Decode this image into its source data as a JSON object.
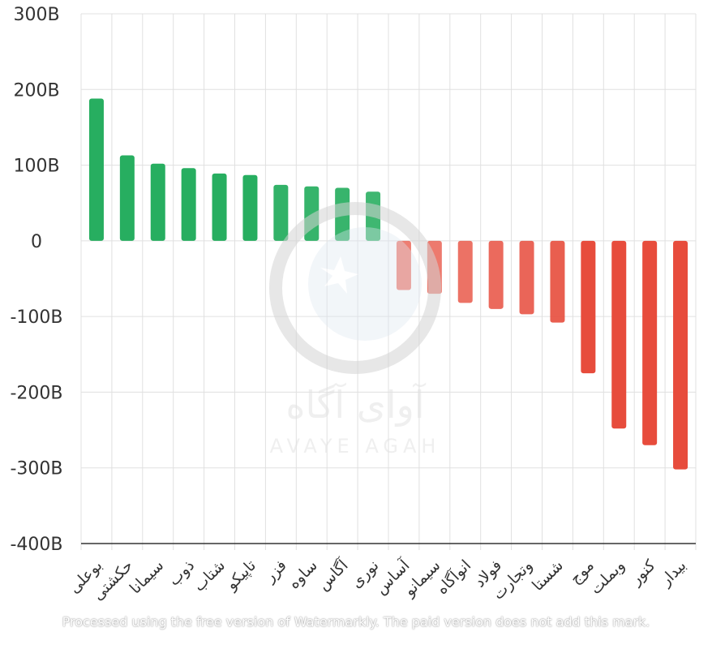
{
  "chart_data": {
    "type": "bar",
    "categories": [
      "بوعلی",
      "حکشتی",
      "سیمانا",
      "ذوب",
      "شتاب",
      "تاپیکو",
      "فزر",
      "ساوه",
      "آگاس",
      "نوری",
      "آساس",
      "سیمانو",
      "انوآگاه",
      "فولاد",
      "وتجارت",
      "شستا",
      "موج",
      "وبملت",
      "کنور",
      "بیدار"
    ],
    "values": [
      188,
      113,
      102,
      96,
      89,
      87,
      74,
      72,
      70,
      65,
      -65,
      -70,
      -82,
      -90,
      -97,
      -108,
      -175,
      -248,
      -270,
      -302
    ],
    "ylim": [
      -400,
      300
    ],
    "yticks": [
      300,
      200,
      100,
      0,
      -100,
      -200,
      -300,
      -400
    ],
    "ytick_labels": [
      "300B",
      "200B",
      "100B",
      "0",
      "-100B",
      "-200B",
      "-300B",
      "-400B"
    ],
    "grid": true,
    "colors": {
      "positive": "#27ae60",
      "negative": "#e74c3c",
      "grid": "#e0e0e0",
      "axis": "#333333"
    }
  },
  "watermark": {
    "title": "آوای آگاه",
    "subtitle": "AVAYE AGAH"
  },
  "footer_note": "Processed using the free version of Watermarkly. The paid version does not add this mark."
}
